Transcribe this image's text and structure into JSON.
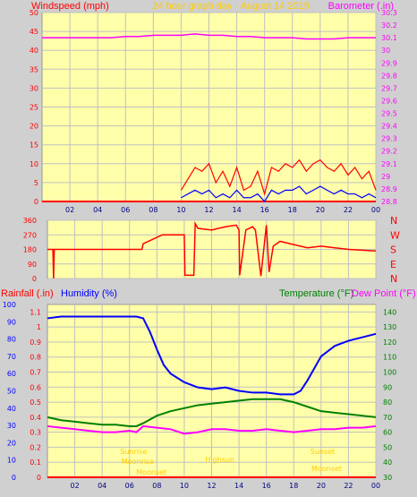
{
  "header": {
    "left_label": "Windspeed (mph)",
    "title": "24 hour graph day - August 14 2015",
    "right_label": "Barometer (.in)"
  },
  "lower_header": {
    "rain_label": "Rainfall (.in)",
    "humidity_label": "Humidity (%)",
    "temp_label": "Temperature (°F)",
    "dew_label": "Dew Point (°F)"
  },
  "colors": {
    "plot_bg": "#ffffaa",
    "grid": "#c0c0c0",
    "windspeed": "#ff0000",
    "gust": "#ff0000",
    "wind_avg": "#0000ff",
    "barometer": "#ff00ff",
    "direction": "#ff0000",
    "humidity": "#0000ff",
    "temperature": "#008000",
    "dewpoint": "#ff00ff",
    "rain_label": "#ff0000",
    "annotation": "#ffcc00"
  },
  "chart_data": [
    {
      "type": "line",
      "title": "24 hour graph day - August 14 2015",
      "x_tick_labels": [
        "02",
        "04",
        "06",
        "08",
        "10",
        "12",
        "14",
        "16",
        "18",
        "20",
        "22",
        "00"
      ],
      "y_left": {
        "label": "Windspeed (mph)",
        "lim": [
          0,
          50
        ],
        "ticks": [
          "0",
          "5",
          "10",
          "15",
          "20",
          "25",
          "30",
          "35",
          "40",
          "45",
          "50"
        ]
      },
      "y_right": {
        "label": "Barometer (.in)",
        "lim": [
          28.8,
          30.3
        ],
        "ticks": [
          "28.8",
          "28.9",
          "29",
          "29.1",
          "29.2",
          "29.3",
          "29.4",
          "29.5",
          "29.6",
          "29.7",
          "29.8",
          "29.9",
          "30",
          "30.1",
          "30.2",
          "30.3"
        ]
      },
      "series": [
        {
          "name": "Barometer (.in)",
          "axis": "right",
          "x": [
            0,
            1,
            2,
            3,
            4,
            5,
            6,
            7,
            8,
            9,
            10,
            11,
            12,
            13,
            14,
            15,
            16,
            17,
            18,
            19,
            20,
            21,
            22,
            23,
            24
          ],
          "values": [
            30.1,
            30.1,
            30.1,
            30.1,
            30.1,
            30.1,
            30.11,
            30.11,
            30.12,
            30.12,
            30.12,
            30.13,
            30.12,
            30.12,
            30.11,
            30.11,
            30.1,
            30.1,
            30.1,
            30.09,
            30.09,
            30.09,
            30.1,
            30.1,
            30.1
          ]
        },
        {
          "name": "Gust",
          "axis": "left",
          "x": [
            10,
            10.5,
            11,
            11.5,
            12,
            12.5,
            13,
            13.5,
            14,
            14.5,
            15,
            15.5,
            16,
            16.5,
            17,
            17.5,
            18,
            18.5,
            19,
            19.5,
            20,
            20.5,
            21,
            21.5,
            22,
            22.5,
            23,
            23.5,
            24
          ],
          "values": [
            3,
            6,
            9,
            8,
            10,
            5,
            8,
            4,
            9,
            3,
            4,
            8,
            2,
            9,
            8,
            10,
            9,
            11,
            8,
            10,
            11,
            9,
            8,
            10,
            7,
            9,
            6,
            8,
            3
          ]
        },
        {
          "name": "Average",
          "axis": "left",
          "x": [
            10,
            10.5,
            11,
            11.5,
            12,
            12.5,
            13,
            13.5,
            14,
            14.5,
            15,
            15.5,
            16,
            16.5,
            17,
            17.5,
            18,
            18.5,
            19,
            19.5,
            20,
            20.5,
            21,
            21.5,
            22,
            22.5,
            23,
            23.5,
            24
          ],
          "values": [
            1,
            2,
            3,
            2,
            3,
            1,
            2,
            1,
            3,
            1,
            1,
            2,
            0,
            3,
            2,
            3,
            3,
            4,
            2,
            3,
            4,
            3,
            2,
            3,
            2,
            2,
            1,
            2,
            1
          ]
        }
      ]
    },
    {
      "type": "line",
      "y_lim": [
        0,
        360
      ],
      "y_ticks": [
        "0",
        "90",
        "180",
        "270",
        "360"
      ],
      "direction_labels": [
        "N",
        "W",
        "S",
        "E",
        "N"
      ],
      "x_tick_labels": [
        "02",
        "04",
        "06",
        "08",
        "10",
        "12",
        "14",
        "16",
        "18",
        "20",
        "22",
        "00"
      ],
      "series": [
        {
          "name": "Wind Direction",
          "x": [
            0,
            0.3,
            0.4,
            0.45,
            0.5,
            6.9,
            7,
            8.4,
            8.5,
            10.0,
            10.05,
            10.7,
            10.8,
            11,
            12,
            13,
            13.8,
            14.0,
            14.05,
            14.5,
            15,
            15.2,
            15.6,
            16,
            16.2,
            16.5,
            17,
            18,
            19,
            20,
            21,
            22,
            23,
            24
          ],
          "values": [
            180,
            180,
            180,
            0,
            180,
            180,
            215,
            270,
            270,
            270,
            20,
            20,
            340,
            310,
            300,
            320,
            330,
            300,
            20,
            300,
            320,
            300,
            15,
            330,
            40,
            200,
            230,
            210,
            190,
            200,
            190,
            180,
            175,
            170
          ]
        }
      ]
    },
    {
      "type": "line",
      "x_tick_labels": [
        "02",
        "04",
        "06",
        "08",
        "10",
        "12",
        "14",
        "16",
        "18",
        "20",
        "22",
        "00"
      ],
      "y_rain": {
        "label": "Rainfall (.in)",
        "lim": [
          0,
          1.15
        ],
        "ticks": [
          "0",
          "0.1",
          "0.2",
          "0.3",
          "0.4",
          "0.5",
          "0.6",
          "0.7",
          "0.8",
          "0.9",
          "1",
          "1.1"
        ]
      },
      "y_humidity": {
        "label": "Humidity (%)",
        "lim": [
          0,
          100
        ],
        "ticks": [
          "0",
          "10",
          "20",
          "30",
          "40",
          "50",
          "60",
          "70",
          "80",
          "90",
          "100"
        ]
      },
      "y_temp": {
        "label": "Temperature (°F)",
        "lim": [
          30,
          145
        ],
        "ticks": [
          "30",
          "40",
          "50",
          "60",
          "70",
          "80",
          "90",
          "100",
          "110",
          "120",
          "130",
          "140"
        ]
      },
      "annotations": [
        "Sunrise",
        "Moonrise",
        "Moonset",
        "Highsun",
        "Sunset",
        "Moonset"
      ],
      "series": [
        {
          "name": "Humidity (%)",
          "axis": "humidity",
          "x": [
            0,
            1,
            2,
            3,
            4,
            5,
            6,
            6.5,
            7,
            7.5,
            8,
            8.5,
            9,
            10,
            11,
            12,
            13,
            14,
            15,
            16,
            17,
            18,
            18.5,
            19,
            20,
            21,
            22,
            23,
            24
          ],
          "values": [
            92,
            93,
            93,
            93,
            93,
            93,
            93,
            93,
            92,
            84,
            74,
            65,
            60,
            55,
            52,
            51,
            52,
            50,
            49,
            49,
            48,
            48,
            50,
            56,
            70,
            76,
            79,
            81,
            83
          ]
        },
        {
          "name": "Temperature (°F)",
          "axis": "temp",
          "x": [
            0,
            1,
            2,
            3,
            4,
            5,
            6,
            6.5,
            7,
            8,
            9,
            10,
            11,
            12,
            13,
            14,
            15,
            16,
            17,
            18,
            19,
            20,
            21,
            22,
            23,
            24
          ],
          "values": [
            70,
            68,
            67,
            66,
            65,
            65,
            64,
            64,
            66,
            71,
            74,
            76,
            78,
            79,
            80,
            81,
            82,
            82,
            82,
            80,
            77,
            74,
            73,
            72,
            71,
            70
          ]
        },
        {
          "name": "Dew Point (°F)",
          "axis": "temp",
          "x": [
            0,
            1,
            2,
            3,
            4,
            5,
            6,
            6.5,
            7,
            8,
            9,
            10,
            11,
            12,
            13,
            14,
            15,
            16,
            17,
            18,
            19,
            20,
            21,
            22,
            23,
            24
          ],
          "values": [
            64,
            63,
            62,
            61,
            60,
            60,
            61,
            60,
            64,
            63,
            62,
            59,
            60,
            62,
            62,
            61,
            61,
            62,
            61,
            60,
            61,
            62,
            62,
            63,
            63,
            64
          ]
        },
        {
          "name": "Rainfall (.in)",
          "axis": "rain",
          "x": [
            0,
            24
          ],
          "values": [
            0,
            0
          ]
        }
      ]
    }
  ]
}
